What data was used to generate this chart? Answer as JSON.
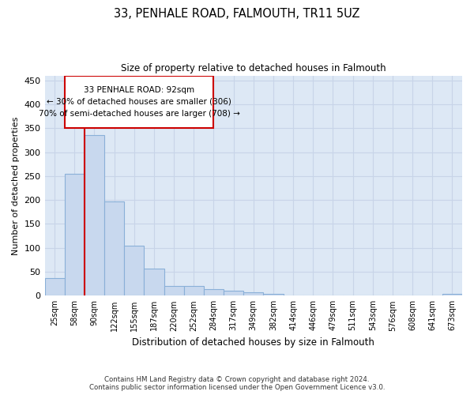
{
  "title": "33, PENHALE ROAD, FALMOUTH, TR11 5UZ",
  "subtitle": "Size of property relative to detached houses in Falmouth",
  "xlabel": "Distribution of detached houses by size in Falmouth",
  "ylabel": "Number of detached properties",
  "footer_line1": "Contains HM Land Registry data © Crown copyright and database right 2024.",
  "footer_line2": "Contains public sector information licensed under the Open Government Licence v3.0.",
  "categories": [
    "25sqm",
    "58sqm",
    "90sqm",
    "122sqm",
    "155sqm",
    "187sqm",
    "220sqm",
    "252sqm",
    "284sqm",
    "317sqm",
    "349sqm",
    "382sqm",
    "414sqm",
    "446sqm",
    "479sqm",
    "511sqm",
    "543sqm",
    "576sqm",
    "608sqm",
    "641sqm",
    "673sqm"
  ],
  "values": [
    36,
    255,
    336,
    197,
    105,
    57,
    21,
    21,
    14,
    11,
    7,
    3,
    0,
    0,
    0,
    0,
    0,
    0,
    0,
    0,
    3
  ],
  "bar_fill_color": "#c8d8ee",
  "bar_edge_color": "#8ab0d8",
  "highlight_line_color": "#cc0000",
  "highlight_line_index": 2,
  "annotation_line1": "33 PENHALE ROAD: 92sqm",
  "annotation_line2": "← 30% of detached houses are smaller (306)",
  "annotation_line3": "70% of semi-detached houses are larger (708) →",
  "annotation_box_color": "#cc0000",
  "annotation_box_bg": "#ffffff",
  "ylim": [
    0,
    460
  ],
  "yticks": [
    0,
    50,
    100,
    150,
    200,
    250,
    300,
    350,
    400,
    450
  ],
  "grid_color": "#c8d4e8",
  "bg_color": "#dde8f5"
}
